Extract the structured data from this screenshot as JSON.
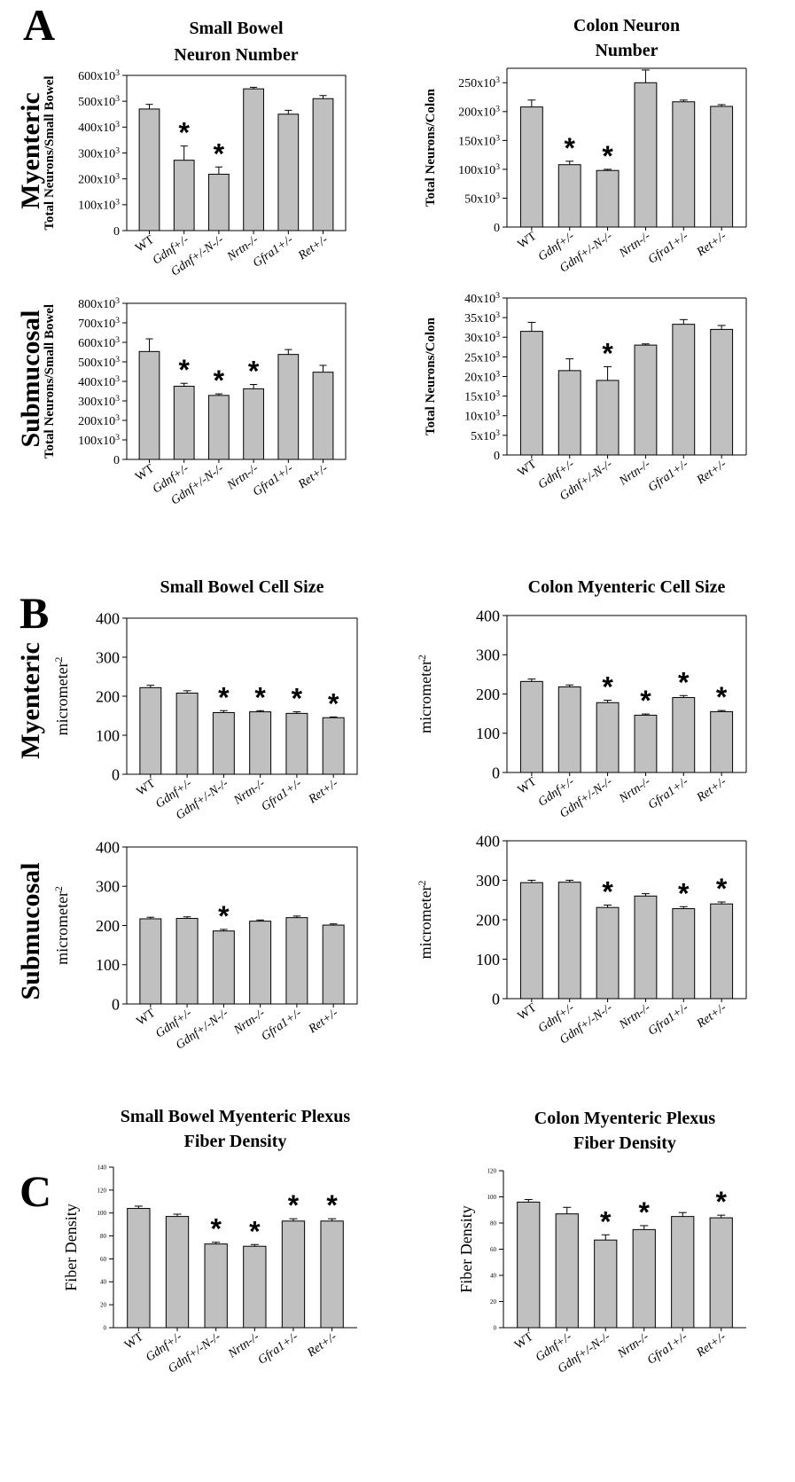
{
  "panel_letters": [
    "A",
    "B",
    "C"
  ],
  "row_labels": [
    "Myenteric",
    "Submucosal",
    "Myenteric",
    "Submucosal"
  ],
  "colors": {
    "bar_fill": "#c0c0c0",
    "bar_stroke": "#000000",
    "background": "#ffffff"
  },
  "chart_data": [
    {
      "id": "A-sb-my",
      "type": "bar",
      "title": [
        "Small Bowel",
        "Neuron Number"
      ],
      "ylabel": "Total Neurons/Small Bowel",
      "categories": [
        "WT",
        "Gdnf+/-",
        "Gdnf+/-N-/-",
        "Nrtn-/-",
        "Gfra1+/-",
        "Ret+/-"
      ],
      "values": [
        470000,
        272000,
        218000,
        548000,
        450000,
        510000
      ],
      "errors": [
        18000,
        55000,
        28000,
        6000,
        15000,
        12000
      ],
      "significant": [
        false,
        true,
        true,
        false,
        false,
        false
      ],
      "ylim": [
        0,
        600000
      ],
      "yticks": [
        0,
        100000,
        200000,
        300000,
        400000,
        500000,
        600000
      ],
      "ytick_labels": [
        "0",
        "100x10³",
        "200x10³",
        "300x10³",
        "400x10³",
        "500x10³",
        "600x10³"
      ]
    },
    {
      "id": "A-co-my",
      "type": "bar",
      "title": [
        "Colon Neuron",
        "Number"
      ],
      "ylabel": "Total Neurons/Colon",
      "categories": [
        "WT",
        "Gdnf+/-",
        "Gdnf+/-N-/-",
        "Nrtn-/-",
        "Gfra1+/-",
        "Ret+/-"
      ],
      "values": [
        208000,
        108000,
        98000,
        250000,
        217000,
        209000
      ],
      "errors": [
        12000,
        6000,
        2000,
        22000,
        3000,
        3000
      ],
      "significant": [
        false,
        true,
        true,
        false,
        false,
        false
      ],
      "ylim": [
        0,
        275000
      ],
      "yticks": [
        0,
        50000,
        100000,
        150000,
        200000,
        250000
      ],
      "ytick_labels": [
        "0",
        "50x10³",
        "100x10³",
        "150x10³",
        "200x10³",
        "250x10³"
      ]
    },
    {
      "id": "A-sb-sm",
      "type": "bar",
      "title": [],
      "ylabel": "Total Neurons/Small Bowel",
      "categories": [
        "WT",
        "Gdnf+/-",
        "Gdnf+/-N-/-",
        "Nrtn-/-",
        "Gfra1+/-",
        "Ret+/-"
      ],
      "values": [
        553000,
        375000,
        328000,
        362000,
        538000,
        447000
      ],
      "errors": [
        65000,
        15000,
        8000,
        22000,
        25000,
        35000
      ],
      "significant": [
        false,
        true,
        true,
        true,
        false,
        false
      ],
      "ylim": [
        0,
        800000
      ],
      "yticks": [
        0,
        100000,
        200000,
        300000,
        400000,
        500000,
        600000,
        700000,
        800000
      ],
      "ytick_labels": [
        "0",
        "100x10³",
        "200x10³",
        "300x10³",
        "400x10³",
        "500x10³",
        "600x10³",
        "700x10³",
        "800x10³"
      ]
    },
    {
      "id": "A-co-sm",
      "type": "bar",
      "title": [],
      "ylabel": "Total Neurons/Colon",
      "categories": [
        "WT",
        "Gdnf+/-",
        "Gdnf+/-N-/-",
        "Nrtn-/-",
        "Gfra1+/-",
        "Ret+/-"
      ],
      "values": [
        31500,
        21500,
        19000,
        28000,
        33300,
        32000
      ],
      "errors": [
        2300,
        3000,
        3500,
        300,
        1200,
        1000
      ],
      "significant": [
        false,
        false,
        true,
        false,
        false,
        false
      ],
      "ylim": [
        0,
        40000
      ],
      "yticks": [
        0,
        5000,
        10000,
        15000,
        20000,
        25000,
        30000,
        35000,
        40000
      ],
      "ytick_labels": [
        "0",
        "5x10³",
        "10x10³",
        "15x10³",
        "20x10³",
        "25x10³",
        "30x10³",
        "35x10³",
        "40x10³"
      ]
    },
    {
      "id": "B-sb-my",
      "type": "bar",
      "title": [
        "Small Bowel Cell Size"
      ],
      "ylabel": "micrometer²",
      "categories": [
        "WT",
        "Gdnf+/-",
        "Gdnf+/-N-/-",
        "Nrtn-/-",
        "Gfra1+/-",
        "Ret+/-"
      ],
      "values": [
        222,
        208,
        158,
        160,
        156,
        145
      ],
      "errors": [
        6,
        6,
        5,
        3,
        4,
        2
      ],
      "significant": [
        false,
        false,
        true,
        true,
        true,
        true
      ],
      "ylim": [
        0,
        400
      ],
      "yticks": [
        0,
        100,
        200,
        300,
        400
      ],
      "ytick_labels": [
        "0",
        "100",
        "200",
        "300",
        "400"
      ]
    },
    {
      "id": "B-co-my",
      "type": "bar",
      "title": [
        "Colon Myenteric Cell Size"
      ],
      "ylabel": "micrometer²",
      "categories": [
        "WT",
        "Gdnf+/-",
        "Gdnf+/-N-/-",
        "Nrtn-/-",
        "Gfra1+/-",
        "Ret+/-"
      ],
      "values": [
        232,
        218,
        178,
        146,
        191,
        155
      ],
      "errors": [
        6,
        5,
        6,
        3,
        5,
        3
      ],
      "significant": [
        false,
        false,
        true,
        true,
        true,
        true
      ],
      "ylim": [
        0,
        400
      ],
      "yticks": [
        0,
        100,
        200,
        300,
        400
      ],
      "ytick_labels": [
        "0",
        "100",
        "200",
        "300",
        "400"
      ]
    },
    {
      "id": "B-sb-sm",
      "type": "bar",
      "title": [],
      "ylabel": "micrometer²",
      "categories": [
        "WT",
        "Gdnf+/-",
        "Gdnf+/-N-/-",
        "Nrtn-/-",
        "Gfra1+/-",
        "Ret+/-"
      ],
      "values": [
        217,
        218,
        186,
        211,
        220,
        201
      ],
      "errors": [
        4,
        4,
        4,
        3,
        4,
        3
      ],
      "significant": [
        false,
        false,
        true,
        false,
        false,
        false
      ],
      "ylim": [
        0,
        400
      ],
      "yticks": [
        0,
        100,
        200,
        300,
        400
      ],
      "ytick_labels": [
        "0",
        "100",
        "200",
        "300",
        "400"
      ]
    },
    {
      "id": "B-co-sm",
      "type": "bar",
      "title": [],
      "ylabel": "micrometer²",
      "categories": [
        "WT",
        "Gdnf+/-",
        "Gdnf+/-N-/-",
        "Nrtn-/-",
        "Gfra1+/-",
        "Ret+/-"
      ],
      "values": [
        294,
        295,
        231,
        260,
        228,
        240
      ],
      "errors": [
        6,
        5,
        6,
        6,
        5,
        5
      ],
      "significant": [
        false,
        false,
        true,
        false,
        true,
        true
      ],
      "ylim": [
        0,
        400
      ],
      "yticks": [
        0,
        100,
        200,
        300,
        400
      ],
      "ytick_labels": [
        "0",
        "100",
        "200",
        "300",
        "400"
      ]
    },
    {
      "id": "C-sb",
      "type": "bar",
      "title": [
        "Small Bowel Myenteric Plexus",
        "Fiber Density"
      ],
      "ylabel": "Fiber Density",
      "categories": [
        "WT",
        "Gdnf+/-",
        "Gdnf+/-N-/-",
        "Nrtn-/-",
        "Gfra1+/-",
        "Ret+/-"
      ],
      "values": [
        104,
        97,
        73,
        71,
        93,
        93
      ],
      "errors": [
        2,
        2,
        1.5,
        1.5,
        2,
        2
      ],
      "significant": [
        false,
        false,
        true,
        true,
        true,
        true
      ],
      "ylim": [
        0,
        140
      ],
      "yticks": [
        0,
        20,
        40,
        60,
        80,
        100,
        120,
        140
      ],
      "ytick_labels": [
        "0",
        "20",
        "40",
        "60",
        "80",
        "100",
        "120",
        "140"
      ]
    },
    {
      "id": "C-co",
      "type": "bar",
      "title": [
        "Colon Myenteric Plexus",
        "Fiber Density"
      ],
      "ylabel": "Fiber Density",
      "categories": [
        "WT",
        "Gdnf+/-",
        "Gdnf+/-N-/-",
        "Nrtn-/-",
        "Gfra1+/-",
        "Ret+/-"
      ],
      "values": [
        96,
        87,
        67,
        75,
        85,
        84
      ],
      "errors": [
        2,
        5,
        4,
        3,
        3,
        2
      ],
      "significant": [
        false,
        false,
        true,
        true,
        false,
        true
      ],
      "ylim": [
        0,
        120
      ],
      "yticks": [
        0,
        20,
        40,
        60,
        80,
        100,
        120
      ],
      "ytick_labels": [
        "0",
        "20",
        "40",
        "60",
        "80",
        "100",
        "120"
      ]
    }
  ]
}
